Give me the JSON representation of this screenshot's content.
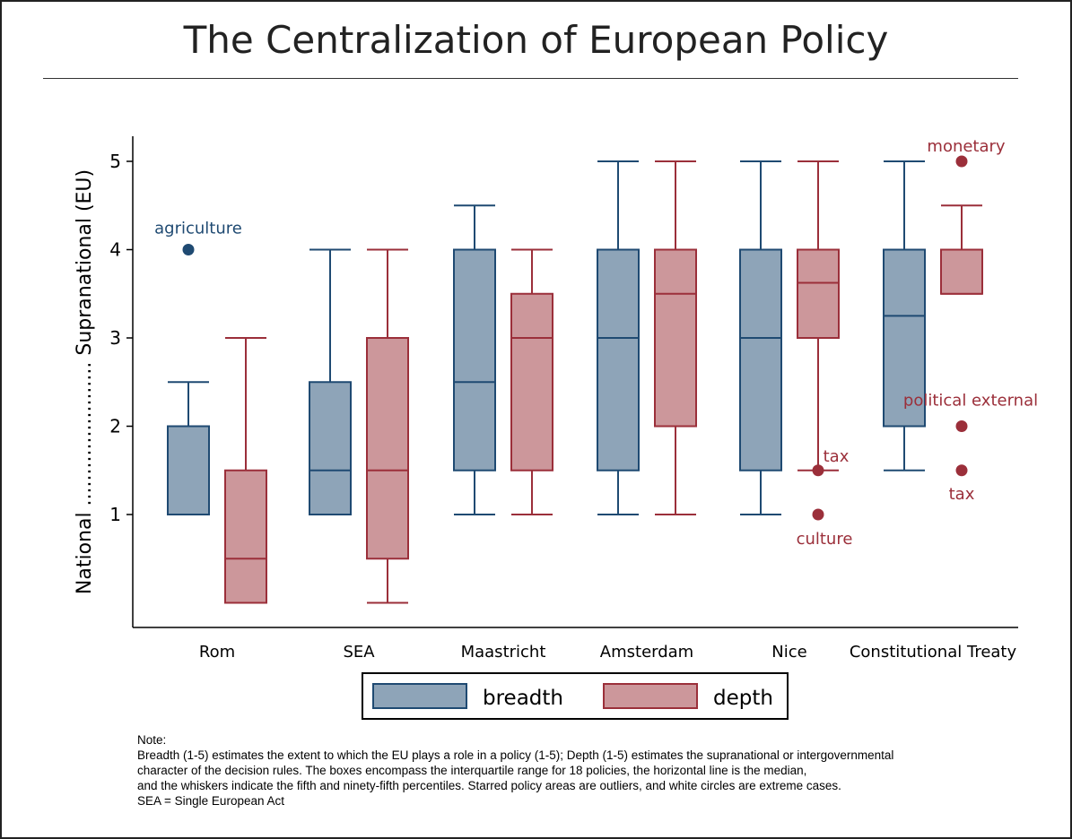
{
  "title": "The Centralization of European Policy",
  "chart_data": {
    "type": "box",
    "title": "The Centralization of European Policy",
    "ylabel": "National ....................... Supranational (EU)",
    "y_ticks": [
      1,
      2,
      3,
      4,
      5
    ],
    "ylim": [
      -0.25,
      5.3
    ],
    "categories": [
      "Rom",
      "SEA",
      "Maastricht",
      "Amsterdam",
      "Nice",
      "Constitutional Treaty"
    ],
    "series": [
      {
        "name": "breadth",
        "fill": "#8ea4b8",
        "stroke": "#1f4a72",
        "boxes": [
          {
            "category": "Rom",
            "whisker_low": 1,
            "q1": 1,
            "median": 1,
            "q3": 2,
            "whisker_high": 2.5
          },
          {
            "category": "SEA",
            "whisker_low": 1,
            "q1": 1,
            "median": 1.5,
            "q3": 2.5,
            "whisker_high": 4
          },
          {
            "category": "Maastricht",
            "whisker_low": 1,
            "q1": 1.5,
            "median": 2.5,
            "q3": 4,
            "whisker_high": 4.5
          },
          {
            "category": "Amsterdam",
            "whisker_low": 1,
            "q1": 1.5,
            "median": 3,
            "q3": 4,
            "whisker_high": 5
          },
          {
            "category": "Nice",
            "whisker_low": 1,
            "q1": 1.5,
            "median": 3,
            "q3": 4,
            "whisker_high": 5
          },
          {
            "category": "Constitutional Treaty",
            "whisker_low": 1.5,
            "q1": 2,
            "median": 3.25,
            "q3": 4,
            "whisker_high": 5
          }
        ],
        "outliers": [
          {
            "category": "Rom",
            "value": 4,
            "label": "agriculture"
          }
        ]
      },
      {
        "name": "depth",
        "fill": "#cc979b",
        "stroke": "#9b2f3a",
        "boxes": [
          {
            "category": "Rom",
            "whisker_low": 0,
            "q1": 0,
            "median": 0.5,
            "q3": 1.5,
            "whisker_high": 3
          },
          {
            "category": "SEA",
            "whisker_low": 0,
            "q1": 0.5,
            "median": 1.5,
            "q3": 3,
            "whisker_high": 4
          },
          {
            "category": "Maastricht",
            "whisker_low": 1,
            "q1": 1.5,
            "median": 3,
            "q3": 3.5,
            "whisker_high": 4
          },
          {
            "category": "Amsterdam",
            "whisker_low": 1,
            "q1": 2,
            "median": 3.5,
            "q3": 4,
            "whisker_high": 5
          },
          {
            "category": "Nice",
            "whisker_low": 1.5,
            "q1": 3,
            "median": 3.625,
            "q3": 4,
            "whisker_high": 5
          },
          {
            "category": "Constitutional Treaty",
            "whisker_low": 3.5,
            "q1": 3.5,
            "median": 4,
            "q3": 4,
            "whisker_high": 4.5
          }
        ],
        "outliers": [
          {
            "category": "Nice",
            "value": 1.5,
            "label": "tax"
          },
          {
            "category": "Nice",
            "value": 1,
            "label": "culture"
          },
          {
            "category": "Constitutional Treaty",
            "value": 5,
            "label": "monetary"
          },
          {
            "category": "Constitutional Treaty",
            "value": 2,
            "label": "political external"
          },
          {
            "category": "Constitutional Treaty",
            "value": 1.5,
            "label": "tax"
          }
        ]
      }
    ],
    "legend": {
      "position": "bottom",
      "entries": [
        "breadth",
        "depth"
      ]
    },
    "grid": false
  },
  "note": {
    "heading": "Note:",
    "lines": [
      "Breadth (1-5) estimates the extent to which the EU plays a role in a policy (1-5); Depth (1-5) estimates the supranational or intergovernmental",
      "character of the decision rules. The boxes encompass the interquartile range for 18 policies, the horizontal line is the median,",
      "and the whiskers indicate the fifth and ninety-fifth percentiles. Starred policy areas are outliers, and white circles are extreme cases.",
      "SEA = Single European Act"
    ]
  }
}
